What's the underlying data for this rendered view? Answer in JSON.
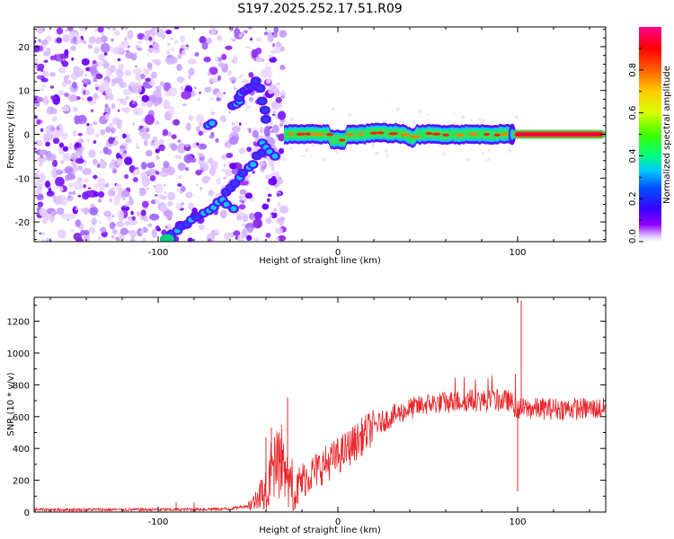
{
  "title": "S197.2025.252.17.51.R09",
  "chart_data": [
    {
      "type": "heatmap",
      "xlabel": "Height of straight line (km)",
      "ylabel": "Frequency (Hz)",
      "xlim": [
        -169,
        149
      ],
      "ylim": [
        -24.5,
        24.5
      ],
      "xticks": [
        -100,
        0,
        100
      ],
      "yticks": [
        -20,
        -10,
        0,
        10,
        20
      ],
      "colorbar": {
        "label": "Normalized spectral amplitude",
        "range": [
          0,
          1
        ],
        "ticks": [
          "0.0",
          "0.2",
          "0.4",
          "0.6",
          "0.8"
        ],
        "colormap": [
          "#ffffff",
          "#d9b8ff",
          "#9000ff",
          "#3a00ff",
          "#0050ff",
          "#00c8ff",
          "#00ff80",
          "#40ff00",
          "#d8ff00",
          "#ffcc00",
          "#ff6000",
          "#ff0000",
          "#ff0090"
        ]
      },
      "description_values": {
        "carrier_frequency_hz": 0,
        "noise_region_km": [
          -169,
          -30
        ],
        "arc_upper_branch": [
          [
            -58,
            6
          ],
          [
            -52,
            10
          ],
          [
            -45,
            12
          ],
          [
            -38,
            2
          ]
        ],
        "arc_lower_branch": [
          [
            -95,
            -24
          ],
          [
            -85,
            -20
          ],
          [
            -70,
            -17
          ],
          [
            -55,
            -10
          ],
          [
            -40,
            -3
          ]
        ],
        "coherent_start_km": -30,
        "strong_tone_start_km": 97
      }
    },
    {
      "type": "line",
      "xlabel": "Height of straight line (km)",
      "ylabel": "SNR (10 * v/v)",
      "xlim": [
        -169,
        149
      ],
      "ylim": [
        0,
        1350
      ],
      "xticks": [
        -100,
        0,
        100
      ],
      "yticks": [
        0,
        200,
        400,
        600,
        800,
        1000,
        1200
      ],
      "series": [
        {
          "name": "SNR",
          "color": "#e8282b",
          "envelope": [
            [
              -169,
              15
            ],
            [
              -90,
              15
            ],
            [
              -60,
              20
            ],
            [
              -50,
              40
            ],
            [
              -45,
              80
            ],
            [
              -38,
              200
            ],
            [
              -35,
              280
            ],
            [
              -30,
              250
            ],
            [
              -25,
              80
            ],
            [
              -20,
              200
            ],
            [
              -10,
              280
            ],
            [
              0,
              350
            ],
            [
              10,
              440
            ],
            [
              20,
              540
            ],
            [
              30,
              600
            ],
            [
              40,
              650
            ],
            [
              50,
              680
            ],
            [
              70,
              700
            ],
            [
              95,
              700
            ],
            [
              100,
              650
            ],
            [
              110,
              650
            ],
            [
              149,
              650
            ]
          ],
          "spikes": [
            [
              -90,
              60
            ],
            [
              -80,
              60
            ],
            [
              -40,
              470
            ],
            [
              -37,
              530
            ],
            [
              -28,
              720
            ],
            [
              -24,
              130
            ],
            [
              102,
              1330
            ],
            [
              100,
              130
            ]
          ]
        }
      ]
    }
  ]
}
